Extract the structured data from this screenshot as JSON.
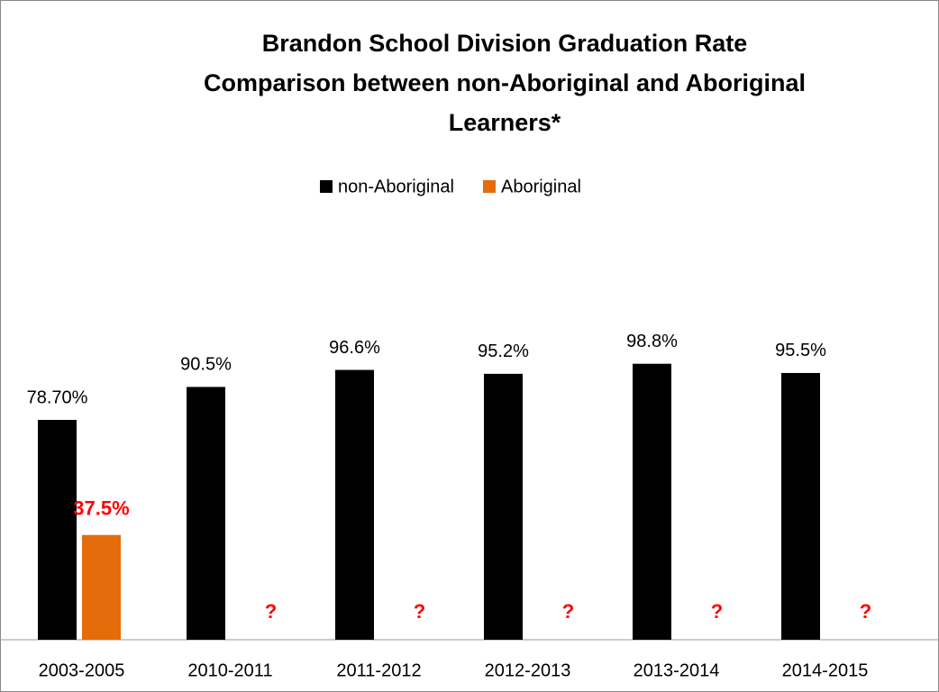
{
  "chart_data": {
    "type": "bar",
    "title": [
      "Brandon School Division Graduation Rate",
      "Comparison between non-Aboriginal and Aboriginal",
      "Learners*"
    ],
    "categories": [
      "2003-2005",
      "2010-2011",
      "2011-2012",
      "2012-2013",
      "2013-2014",
      "2014-2015"
    ],
    "series": [
      {
        "name": "non-Aboriginal",
        "color": "#000000",
        "values": [
          78.7,
          90.5,
          96.6,
          95.2,
          98.8,
          95.5
        ],
        "value_labels": [
          "78.70%",
          "90.5%",
          "96.6%",
          "95.2%",
          "98.8%",
          "95.5%"
        ]
      },
      {
        "name": "Aboriginal",
        "color": "#e46c0a",
        "values": [
          37.5,
          null,
          null,
          null,
          null,
          null
        ],
        "value_labels": [
          "37.5%",
          "?",
          "?",
          "?",
          "?",
          "?"
        ],
        "label_color": "#ff0000"
      }
    ],
    "ylim": [
      0,
      150
    ],
    "grid": false,
    "legend": "top"
  }
}
